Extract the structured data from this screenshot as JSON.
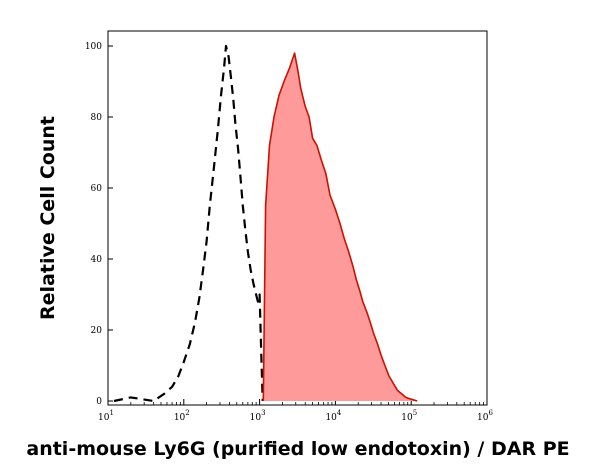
{
  "chart_data": {
    "type": "area",
    "title": "",
    "xlabel": "anti-mouse Ly6G (purified low endotoxin) / DAR PE",
    "ylabel": "Relative Cell Count",
    "x_scale": "log",
    "xlim": [
      10,
      1000000
    ],
    "ylim": [
      0,
      100
    ],
    "x_ticks": [
      10,
      100,
      1000,
      10000,
      100000,
      1000000
    ],
    "x_tick_labels": [
      {
        "base": "10",
        "exp": "1"
      },
      {
        "base": "10",
        "exp": "2"
      },
      {
        "base": "10",
        "exp": "3"
      },
      {
        "base": "10",
        "exp": "4"
      },
      {
        "base": "10",
        "exp": "5"
      },
      {
        "base": "10",
        "exp": "6"
      }
    ],
    "y_ticks": [
      0,
      20,
      40,
      60,
      80,
      100
    ],
    "y_tick_labels": [
      "0",
      "20",
      "40",
      "60",
      "80",
      "100"
    ],
    "grid": false,
    "legend": "none",
    "series": [
      {
        "style": "dashed-outline",
        "color": "#000000",
        "x": [
          12,
          20,
          40,
          55,
          70,
          85,
          100,
          120,
          140,
          160,
          180,
          200,
          220,
          250,
          280,
          310,
          340,
          360,
          390,
          420,
          450,
          480,
          520,
          560,
          600,
          650,
          700,
          760,
          830,
          900,
          950,
          1000,
          1050,
          1100
        ],
        "y": [
          0,
          1,
          0,
          2,
          4,
          7,
          11,
          16,
          22,
          29,
          37,
          45,
          55,
          66,
          76,
          86,
          94,
          100,
          97,
          91,
          85,
          78,
          71,
          63,
          55,
          48,
          42,
          37,
          33,
          30,
          28,
          30,
          14,
          0
        ]
      },
      {
        "style": "filled",
        "color": "#cc1100",
        "fill": "#ff9a9a",
        "x": [
          1120,
          1200,
          1350,
          1550,
          1800,
          2100,
          2500,
          2900,
          3200,
          3500,
          4000,
          4500,
          5000,
          5700,
          6500,
          7500,
          8500,
          10000,
          11500,
          13000,
          15000,
          17000,
          19000,
          21000,
          23000,
          26000,
          29000,
          32000,
          36000,
          40000,
          45000,
          51000,
          58000,
          66000,
          75000,
          85000,
          100000,
          120000
        ],
        "y": [
          0,
          55,
          72,
          80,
          86,
          90,
          94,
          98,
          93,
          88,
          83,
          80,
          74,
          72,
          68,
          64,
          58,
          54,
          50,
          46,
          42,
          38,
          34,
          31,
          28,
          25,
          22,
          19,
          16,
          13,
          10,
          7,
          5,
          3,
          2,
          1,
          0.5,
          0
        ]
      }
    ]
  }
}
